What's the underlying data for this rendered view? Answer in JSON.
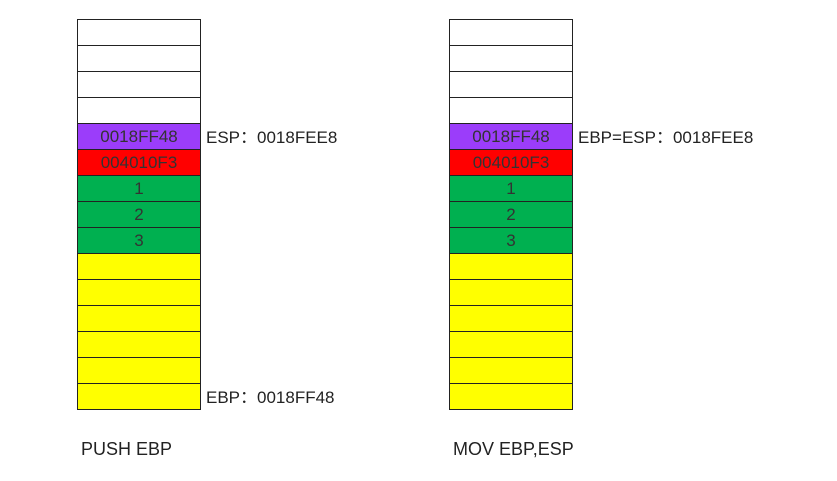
{
  "colors": {
    "empty": "#ffffff",
    "saved_ebp": "#9b3dfa",
    "return_address": "#ff0000",
    "arguments": "#00b050",
    "caller_frame": "#ffff00"
  },
  "panels": [
    {
      "caption": "PUSH EBP",
      "cells": [
        {
          "label": "",
          "kind": "empty"
        },
        {
          "label": "",
          "kind": "empty"
        },
        {
          "label": "",
          "kind": "empty"
        },
        {
          "label": "",
          "kind": "empty"
        },
        {
          "label": "0018FF48",
          "kind": "saved_ebp"
        },
        {
          "label": "004010F3",
          "kind": "return_address"
        },
        {
          "label": "1",
          "kind": "arguments"
        },
        {
          "label": "2",
          "kind": "arguments"
        },
        {
          "label": "3",
          "kind": "arguments"
        },
        {
          "label": "",
          "kind": "caller_frame"
        },
        {
          "label": "",
          "kind": "caller_frame"
        },
        {
          "label": "",
          "kind": "caller_frame"
        },
        {
          "label": "",
          "kind": "caller_frame"
        },
        {
          "label": "",
          "kind": "caller_frame"
        },
        {
          "label": "",
          "kind": "caller_frame"
        }
      ],
      "pointers": [
        {
          "text": "ESP：0018FEE8",
          "row": 4
        },
        {
          "text": "EBP：0018FF48",
          "row": 14
        }
      ]
    },
    {
      "caption": "MOV EBP,ESP",
      "cells": [
        {
          "label": "",
          "kind": "empty"
        },
        {
          "label": "",
          "kind": "empty"
        },
        {
          "label": "",
          "kind": "empty"
        },
        {
          "label": "",
          "kind": "empty"
        },
        {
          "label": "0018FF48",
          "kind": "saved_ebp"
        },
        {
          "label": "004010F3",
          "kind": "return_address"
        },
        {
          "label": "1",
          "kind": "arguments"
        },
        {
          "label": "2",
          "kind": "arguments"
        },
        {
          "label": "3",
          "kind": "arguments"
        },
        {
          "label": "",
          "kind": "caller_frame"
        },
        {
          "label": "",
          "kind": "caller_frame"
        },
        {
          "label": "",
          "kind": "caller_frame"
        },
        {
          "label": "",
          "kind": "caller_frame"
        },
        {
          "label": "",
          "kind": "caller_frame"
        },
        {
          "label": "",
          "kind": "caller_frame"
        }
      ],
      "pointers": [
        {
          "text": "EBP=ESP：0018FEE8",
          "row": 4
        }
      ]
    }
  ]
}
